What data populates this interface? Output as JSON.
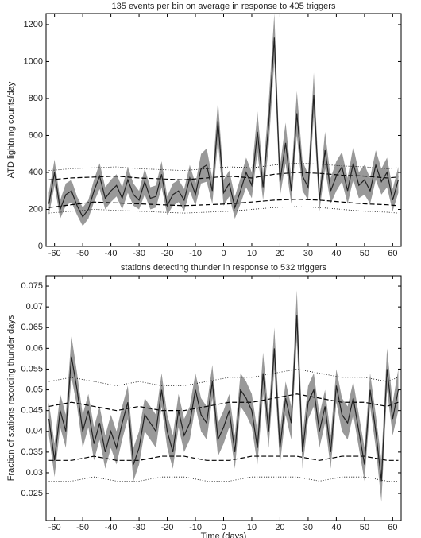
{
  "chart_data": [
    {
      "type": "line",
      "title": "135 events per bin on average in response to 405 triggers",
      "ylabel": "ATD lightning counts/day",
      "xlim": [
        -63,
        63
      ],
      "ylim": [
        0,
        1260
      ],
      "xticks": [
        -60,
        -50,
        -40,
        -30,
        -20,
        -10,
        0,
        10,
        20,
        30,
        40,
        50,
        60
      ],
      "yticks": [
        0,
        200,
        400,
        600,
        800,
        1000,
        1200
      ],
      "x": [
        -62,
        -60,
        -58,
        -56,
        -54,
        -52,
        -50,
        -48,
        -46,
        -44,
        -42,
        -40,
        -38,
        -36,
        -34,
        -32,
        -30,
        -28,
        -26,
        -24,
        -22,
        -20,
        -18,
        -16,
        -14,
        -12,
        -10,
        -8,
        -6,
        -4,
        -2,
        0,
        2,
        4,
        6,
        8,
        10,
        12,
        14,
        16,
        18,
        20,
        22,
        24,
        26,
        28,
        30,
        32,
        34,
        36,
        38,
        40,
        42,
        44,
        46,
        48,
        50,
        52,
        54,
        56,
        58,
        60,
        62
      ],
      "series": [
        {
          "color": "#222222",
          "band_color": "#999999",
          "values": [
            230,
            400,
            200,
            280,
            300,
            220,
            160,
            200,
            300,
            380,
            260,
            300,
            330,
            260,
            360,
            280,
            250,
            350,
            260,
            270,
            390,
            220,
            280,
            300,
            250,
            370,
            280,
            420,
            440,
            300,
            680,
            290,
            340,
            210,
            300,
            400,
            330,
            620,
            320,
            660,
            1130,
            350,
            560,
            300,
            720,
            380,
            320,
            820,
            250,
            520,
            300,
            380,
            430,
            300,
            450,
            330,
            360,
            300,
            440,
            350,
            400,
            250,
            360
          ],
          "errors": [
            60,
            70,
            50,
            60,
            60,
            50,
            50,
            50,
            60,
            70,
            60,
            60,
            60,
            60,
            70,
            60,
            50,
            70,
            60,
            60,
            70,
            50,
            60,
            60,
            60,
            70,
            60,
            80,
            90,
            70,
            110,
            70,
            70,
            60,
            70,
            80,
            70,
            110,
            70,
            120,
            130,
            80,
            110,
            70,
            120,
            80,
            70,
            120,
            60,
            100,
            70,
            80,
            80,
            70,
            90,
            70,
            80,
            70,
            80,
            70,
            80,
            60,
            70
          ]
        }
      ],
      "bounds": [
        {
          "style": "dashed",
          "x": [
            -62,
            -54,
            -46,
            -38,
            -30,
            -22,
            -14,
            -6,
            2,
            10,
            18,
            26,
            34,
            42,
            50,
            58,
            62
          ],
          "values": [
            360,
            370,
            375,
            380,
            370,
            365,
            360,
            370,
            380,
            370,
            390,
            400,
            395,
            385,
            380,
            370,
            375
          ]
        },
        {
          "style": "dashed",
          "x": [
            -62,
            -54,
            -46,
            -38,
            -30,
            -22,
            -14,
            -6,
            2,
            10,
            18,
            26,
            34,
            42,
            50,
            58,
            62
          ],
          "values": [
            210,
            225,
            240,
            235,
            230,
            225,
            220,
            225,
            230,
            240,
            250,
            255,
            250,
            240,
            230,
            225,
            220
          ]
        },
        {
          "style": "dotted",
          "x": [
            -62,
            -54,
            -46,
            -38,
            -30,
            -22,
            -14,
            -6,
            2,
            10,
            18,
            26,
            34,
            42,
            50,
            58,
            62
          ],
          "values": [
            410,
            420,
            425,
            430,
            420,
            415,
            410,
            420,
            430,
            425,
            440,
            450,
            445,
            435,
            430,
            420,
            425
          ]
        },
        {
          "style": "dotted",
          "x": [
            -62,
            -54,
            -46,
            -38,
            -30,
            -22,
            -14,
            -6,
            2,
            10,
            18,
            26,
            34,
            42,
            50,
            58,
            62
          ],
          "values": [
            180,
            190,
            200,
            195,
            190,
            185,
            180,
            185,
            190,
            200,
            210,
            215,
            210,
            200,
            190,
            185,
            180
          ]
        }
      ]
    },
    {
      "type": "line",
      "title": "stations detecting thunder in response to 532 triggers",
      "ylabel": "Fraction of stations recording thunder days",
      "xlabel": "Time (days)",
      "xlim": [
        -63,
        63
      ],
      "ylim": [
        0.0185,
        0.0775
      ],
      "xticks": [
        -60,
        -50,
        -40,
        -30,
        -20,
        -10,
        0,
        10,
        20,
        30,
        40,
        50,
        60
      ],
      "yticks": [
        0.025,
        0.03,
        0.035,
        0.04,
        0.045,
        0.05,
        0.055,
        0.06,
        0.065,
        0.07,
        0.075
      ],
      "x": [
        -62,
        -60,
        -58,
        -56,
        -54,
        -52,
        -50,
        -48,
        -46,
        -44,
        -42,
        -40,
        -38,
        -36,
        -34,
        -32,
        -30,
        -28,
        -26,
        -24,
        -22,
        -20,
        -18,
        -16,
        -14,
        -12,
        -10,
        -8,
        -6,
        -4,
        -2,
        0,
        2,
        4,
        6,
        8,
        10,
        12,
        14,
        16,
        18,
        20,
        22,
        24,
        26,
        28,
        30,
        32,
        34,
        36,
        38,
        40,
        42,
        44,
        46,
        48,
        50,
        52,
        54,
        56,
        58,
        60,
        62
      ],
      "series": [
        {
          "color": "#222222",
          "band_color": "#999999",
          "values": [
            0.043,
            0.033,
            0.045,
            0.04,
            0.058,
            0.05,
            0.04,
            0.045,
            0.037,
            0.042,
            0.035,
            0.04,
            0.036,
            0.042,
            0.047,
            0.032,
            0.036,
            0.044,
            0.042,
            0.04,
            0.05,
            0.04,
            0.035,
            0.045,
            0.039,
            0.042,
            0.05,
            0.044,
            0.042,
            0.052,
            0.038,
            0.041,
            0.045,
            0.035,
            0.05,
            0.048,
            0.045,
            0.036,
            0.054,
            0.04,
            0.06,
            0.036,
            0.048,
            0.042,
            0.068,
            0.035,
            0.047,
            0.05,
            0.04,
            0.046,
            0.035,
            0.051,
            0.044,
            0.042,
            0.048,
            0.04,
            0.032,
            0.05,
            0.04,
            0.028,
            0.055,
            0.043,
            0.05
          ],
          "errors": [
            0.004,
            0.004,
            0.004,
            0.004,
            0.005,
            0.004,
            0.004,
            0.004,
            0.004,
            0.004,
            0.004,
            0.004,
            0.004,
            0.004,
            0.004,
            0.004,
            0.004,
            0.004,
            0.004,
            0.004,
            0.004,
            0.004,
            0.004,
            0.004,
            0.004,
            0.004,
            0.004,
            0.004,
            0.004,
            0.004,
            0.004,
            0.004,
            0.004,
            0.004,
            0.004,
            0.004,
            0.004,
            0.004,
            0.005,
            0.004,
            0.005,
            0.004,
            0.004,
            0.004,
            0.006,
            0.004,
            0.004,
            0.004,
            0.004,
            0.004,
            0.004,
            0.004,
            0.004,
            0.004,
            0.004,
            0.004,
            0.004,
            0.004,
            0.004,
            0.005,
            0.005,
            0.004,
            0.005
          ]
        }
      ],
      "bounds": [
        {
          "style": "dashed",
          "x": [
            -62,
            -54,
            -46,
            -38,
            -30,
            -22,
            -14,
            -6,
            2,
            10,
            18,
            26,
            34,
            42,
            50,
            58,
            62
          ],
          "values": [
            0.046,
            0.047,
            0.046,
            0.045,
            0.046,
            0.045,
            0.045,
            0.046,
            0.047,
            0.047,
            0.048,
            0.049,
            0.048,
            0.047,
            0.047,
            0.046,
            0.047
          ]
        },
        {
          "style": "dashed",
          "x": [
            -62,
            -54,
            -46,
            -38,
            -30,
            -22,
            -14,
            -6,
            2,
            10,
            18,
            26,
            34,
            42,
            50,
            58,
            62
          ],
          "values": [
            0.033,
            0.033,
            0.034,
            0.033,
            0.033,
            0.034,
            0.034,
            0.033,
            0.033,
            0.034,
            0.034,
            0.034,
            0.033,
            0.034,
            0.034,
            0.033,
            0.033
          ]
        },
        {
          "style": "dotted",
          "x": [
            -62,
            -54,
            -46,
            -38,
            -30,
            -22,
            -14,
            -6,
            2,
            10,
            18,
            26,
            34,
            42,
            50,
            58,
            62
          ],
          "values": [
            0.052,
            0.053,
            0.052,
            0.051,
            0.052,
            0.051,
            0.051,
            0.052,
            0.053,
            0.053,
            0.054,
            0.055,
            0.054,
            0.053,
            0.053,
            0.052,
            0.053
          ]
        },
        {
          "style": "dotted",
          "x": [
            -62,
            -54,
            -46,
            -38,
            -30,
            -22,
            -14,
            -6,
            2,
            10,
            18,
            26,
            34,
            42,
            50,
            58,
            62
          ],
          "values": [
            0.028,
            0.028,
            0.029,
            0.028,
            0.028,
            0.029,
            0.029,
            0.028,
            0.028,
            0.029,
            0.029,
            0.029,
            0.028,
            0.029,
            0.029,
            0.028,
            0.028
          ]
        }
      ]
    }
  ]
}
